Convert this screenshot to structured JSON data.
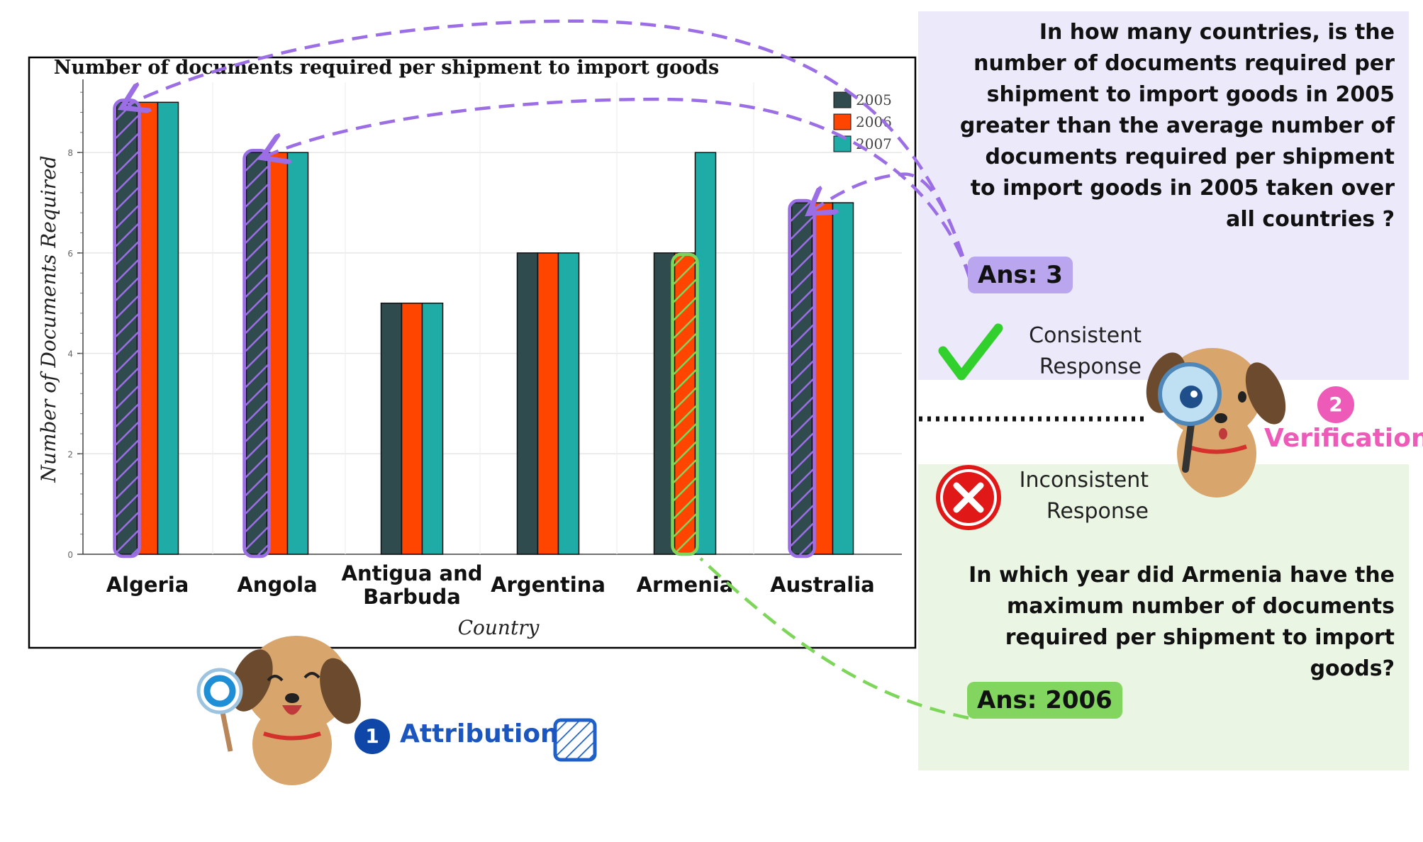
{
  "chart_data": {
    "type": "bar",
    "title": "Number of documents required per shipment to import goods",
    "xlabel": "Country",
    "ylabel": "Number of Documents Required",
    "ylim": [
      0,
      9.4
    ],
    "yticks": [
      "0",
      "2",
      "4",
      "6",
      "8"
    ],
    "grid": true,
    "legend_position": "top-right",
    "categories": [
      "Algeria",
      "Angola",
      "Antigua and Barbuda",
      "Argentina",
      "Armenia",
      "Australia"
    ],
    "category_labels": [
      [
        "Algeria"
      ],
      [
        "Angola"
      ],
      [
        "Antigua and",
        "Barbuda"
      ],
      [
        "Argentina"
      ],
      [
        "Armenia"
      ],
      [
        "Australia"
      ]
    ],
    "series": [
      {
        "name": "2005",
        "color": "#2f4b4e",
        "values": [
          9,
          8,
          5,
          6,
          6,
          7
        ]
      },
      {
        "name": "2006",
        "color": "#ff4500",
        "values": [
          9,
          8,
          5,
          6,
          6,
          7
        ]
      },
      {
        "name": "2007",
        "color": "#20aca6",
        "values": [
          9,
          8,
          5,
          6,
          8,
          7
        ]
      }
    ]
  },
  "highlights": {
    "attributed_2005_categories": [
      "Algeria",
      "Angola",
      "Australia"
    ],
    "attributed_2006_category": "Armenia",
    "purple": "#9b6ee6",
    "green": "#7dd65a"
  },
  "panel_top": {
    "question": "In how many countries, is the number of documents required per shipment to import goods in 2005 greater than the average number of documents required per shipment to import goods in 2005 taken over all countries ?",
    "answer": "Ans: 3",
    "response_label": "Consistent Response",
    "status_icon": "check-icon",
    "background": "#ece9fb"
  },
  "panel_bottom": {
    "question": "In which year did Armenia have the maximum number of documents required per shipment to import goods?",
    "answer": "Ans: 2006",
    "response_label": "Inconsistent Response",
    "status_icon": "cross-icon",
    "background": "#eaf5e3"
  },
  "verification": {
    "number": "2",
    "label": "Verification",
    "color": "#ee5ab8"
  },
  "attribution": {
    "number": "1",
    "label": "Attribution",
    "color": "#1a55c0",
    "icon": "hatched-square-icon"
  }
}
